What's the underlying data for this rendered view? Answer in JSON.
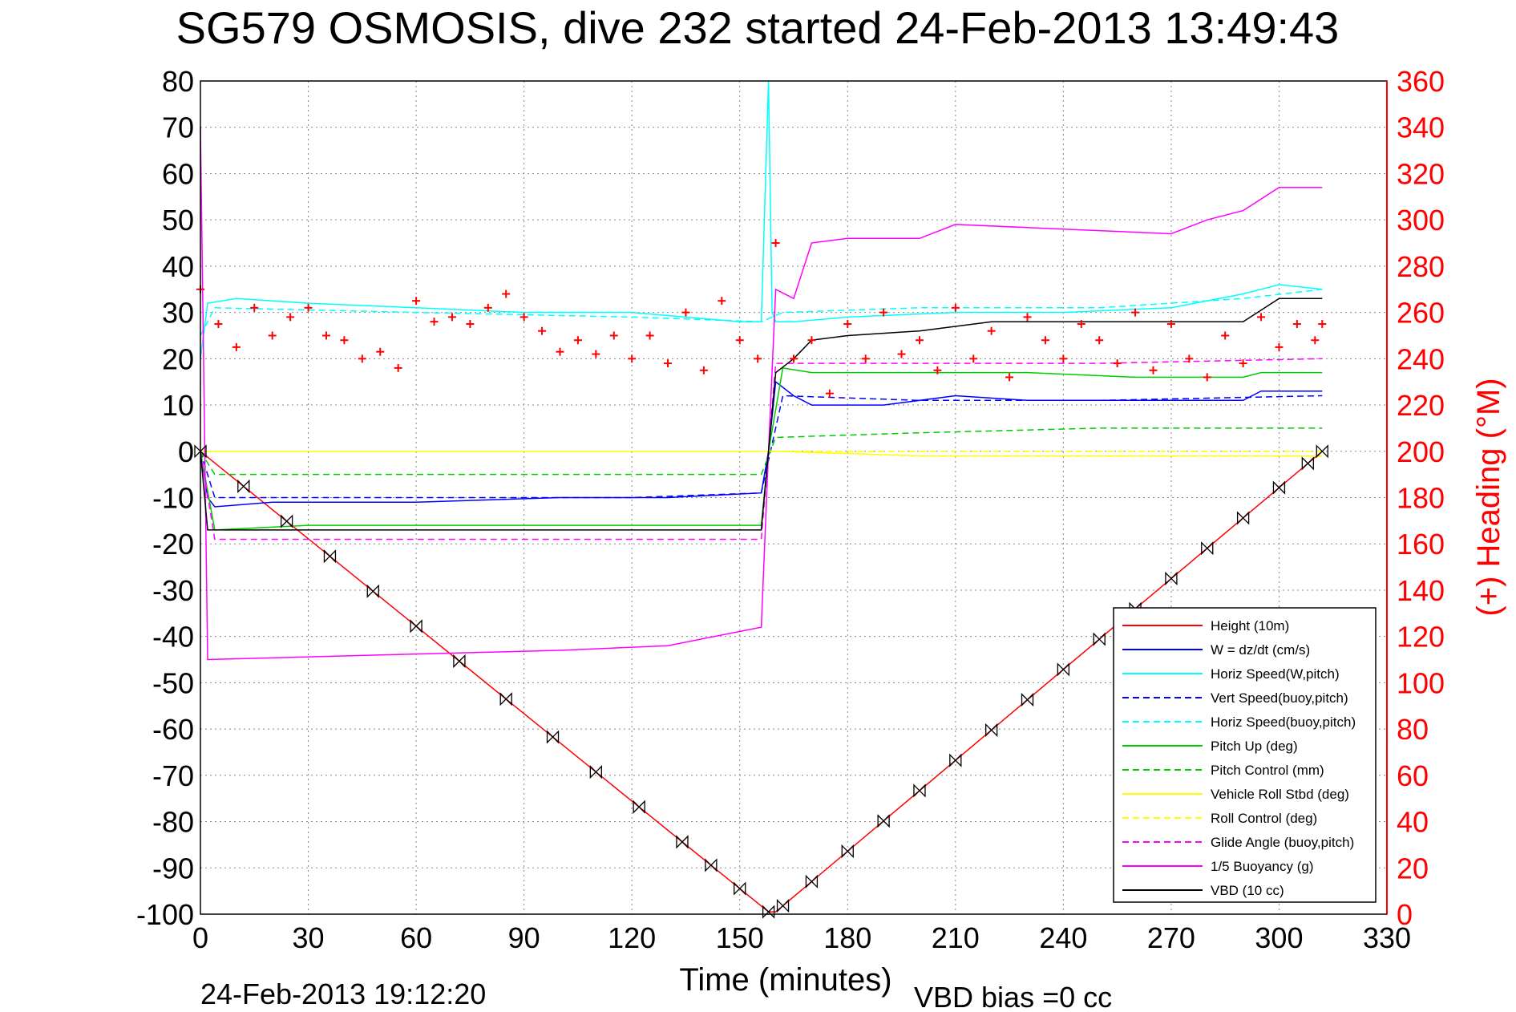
{
  "chart_data": {
    "type": "line",
    "title": "SG579 OSMOSIS, dive 232 started 24-Feb-2013 13:49:43",
    "xlabel": "Time (minutes)",
    "ylabel_right": "(+) Heading (°M)",
    "footer_left": "24-Feb-2013 19:12:20",
    "footer_right": "VBD bias =0 cc",
    "xlim": [
      0,
      330
    ],
    "ylim": [
      -100,
      80
    ],
    "ylim_right": [
      0,
      360
    ],
    "x_ticks": [
      "0",
      "30",
      "60",
      "90",
      "120",
      "150",
      "180",
      "210",
      "240",
      "270",
      "300",
      "330"
    ],
    "y_ticks": [
      "-100",
      "-90",
      "-80",
      "-70",
      "-60",
      "-50",
      "-40",
      "-30",
      "-20",
      "-10",
      "0",
      "10",
      "20",
      "30",
      "40",
      "50",
      "60",
      "70",
      "80"
    ],
    "y_ticks_right": [
      "0",
      "20",
      "40",
      "60",
      "80",
      "100",
      "120",
      "140",
      "160",
      "180",
      "200",
      "220",
      "240",
      "260",
      "280",
      "300",
      "320",
      "340",
      "360"
    ],
    "grid": true,
    "legend_position": "bottom-right",
    "legend": [
      {
        "label": "Height (10m)",
        "color": "#ff0000",
        "style": "solid"
      },
      {
        "label": "W = dz/dt (cm/s)",
        "color": "#0000ff",
        "style": "solid"
      },
      {
        "label": "Horiz Speed(W,pitch)",
        "color": "#00ffff",
        "style": "solid"
      },
      {
        "label": "Vert Speed(buoy,pitch)",
        "color": "#0000ff",
        "style": "dashed"
      },
      {
        "label": "Horiz Speed(buoy,pitch)",
        "color": "#00ffff",
        "style": "dashed"
      },
      {
        "label": "Pitch Up (deg)",
        "color": "#00cc00",
        "style": "solid"
      },
      {
        "label": "Pitch Control (mm)",
        "color": "#00cc00",
        "style": "dashed"
      },
      {
        "label": "Vehicle Roll Stbd (deg)",
        "color": "#ffff00",
        "style": "solid"
      },
      {
        "label": "Roll Control (deg)",
        "color": "#ffff00",
        "style": "dashed"
      },
      {
        "label": "Glide Angle (buoy,pitch)",
        "color": "#ff00ff",
        "style": "dashed"
      },
      {
        "label": "1/5 Buoyancy (g)",
        "color": "#ff00ff",
        "style": "solid"
      },
      {
        "label": "VBD (10 cc)",
        "color": "#000000",
        "style": "solid"
      }
    ],
    "series": [
      {
        "name": "Height (10m)",
        "color": "#ff0000",
        "style": "solid",
        "x": [
          0,
          158,
          160,
          312
        ],
        "y": [
          0,
          -99.5,
          -99.5,
          0
        ]
      },
      {
        "name": "W = dz/dt (cm/s)",
        "color": "#0000ff",
        "style": "solid",
        "x": [
          0,
          2,
          4,
          20,
          60,
          100,
          130,
          156,
          158,
          160,
          165,
          170,
          190,
          210,
          230,
          260,
          290,
          295,
          312
        ],
        "y": [
          0,
          -10,
          -12,
          -11,
          -11,
          -10,
          -10,
          -9,
          0,
          15,
          12,
          10,
          10,
          12,
          11,
          11,
          11,
          13,
          13
        ]
      },
      {
        "name": "Horiz Speed(W,pitch)",
        "color": "#00ffff",
        "style": "solid",
        "x": [
          0,
          2,
          10,
          30,
          60,
          90,
          120,
          150,
          156,
          158,
          159,
          160,
          165,
          180,
          210,
          240,
          270,
          290,
          300,
          312
        ],
        "y": [
          20,
          32,
          33,
          32,
          31,
          30,
          30,
          28,
          28,
          80,
          30,
          28,
          28,
          29,
          30,
          30,
          31,
          34,
          36,
          35
        ]
      },
      {
        "name": "Vert Speed(buoy,pitch)",
        "color": "#0000ff",
        "style": "dashed",
        "x": [
          0,
          4,
          60,
          120,
          156,
          162,
          200,
          250,
          312
        ],
        "y": [
          0,
          -10,
          -10,
          -10,
          -9,
          12,
          11,
          11,
          12
        ]
      },
      {
        "name": "Horiz Speed(buoy,pitch)",
        "color": "#00ffff",
        "style": "dashed",
        "x": [
          0,
          4,
          60,
          120,
          156,
          162,
          200,
          250,
          290,
          312
        ],
        "y": [
          25,
          31,
          30,
          29,
          28,
          30,
          31,
          31,
          33,
          35
        ]
      },
      {
        "name": "Pitch Up (deg)",
        "color": "#00cc00",
        "style": "solid",
        "x": [
          0,
          4,
          30,
          60,
          100,
          130,
          156,
          158,
          162,
          170,
          200,
          230,
          260,
          290,
          295,
          312
        ],
        "y": [
          0,
          -17,
          -16,
          -16,
          -16,
          -16,
          -16,
          0,
          18,
          17,
          17,
          17,
          16,
          16,
          17,
          17
        ]
      },
      {
        "name": "Pitch Control (mm)",
        "color": "#00cc00",
        "style": "dashed",
        "x": [
          0,
          4,
          60,
          120,
          156,
          160,
          200,
          250,
          312
        ],
        "y": [
          0,
          -5,
          -5,
          -5,
          -5,
          3,
          4,
          5,
          5
        ]
      },
      {
        "name": "Vehicle Roll Stbd (deg)",
        "color": "#ffff00",
        "style": "solid",
        "x": [
          0,
          4,
          60,
          120,
          156,
          160,
          200,
          250,
          312
        ],
        "y": [
          0,
          0,
          0,
          0,
          0,
          0,
          -1,
          -1,
          -1
        ]
      },
      {
        "name": "Roll Control (deg)",
        "color": "#ffff00",
        "style": "dashed",
        "x": [
          0,
          4,
          156,
          160,
          312
        ],
        "y": [
          0,
          0,
          0,
          0,
          0
        ]
      },
      {
        "name": "Glide Angle (buoy,pitch)",
        "color": "#ff00ff",
        "style": "dashed",
        "x": [
          0,
          4,
          60,
          120,
          156,
          160,
          200,
          250,
          312
        ],
        "y": [
          0,
          -19,
          -19,
          -19,
          -19,
          19,
          19,
          19,
          20
        ]
      },
      {
        "name": "1/5 Buoyancy (g)",
        "color": "#ff00ff",
        "style": "solid",
        "x": [
          0,
          2,
          50,
          100,
          130,
          156,
          158,
          160,
          165,
          170,
          180,
          200,
          210,
          240,
          270,
          280,
          290,
          300,
          312
        ],
        "y": [
          70,
          -45,
          -44,
          -43,
          -42,
          -38,
          0,
          35,
          33,
          45,
          46,
          46,
          49,
          48,
          47,
          50,
          52,
          57,
          57
        ]
      },
      {
        "name": "VBD (10 cc)",
        "color": "#000000",
        "style": "solid",
        "x": [
          0,
          2,
          156,
          158,
          160,
          165,
          170,
          180,
          200,
          220,
          260,
          290,
          300,
          312
        ],
        "y": [
          0,
          -17,
          -17,
          0,
          17,
          20,
          24,
          25,
          26,
          28,
          28,
          28,
          33,
          33
        ]
      },
      {
        "name": "Heading",
        "axis": "right",
        "color": "#ff0000",
        "style": "markers",
        "x": [
          0,
          5,
          10,
          15,
          20,
          25,
          30,
          35,
          40,
          45,
          50,
          55,
          60,
          65,
          70,
          75,
          80,
          85,
          90,
          95,
          100,
          105,
          110,
          115,
          120,
          125,
          130,
          135,
          140,
          145,
          150,
          155,
          160,
          165,
          170,
          175,
          180,
          185,
          190,
          195,
          200,
          205,
          210,
          215,
          220,
          225,
          230,
          235,
          240,
          245,
          250,
          255,
          260,
          265,
          270,
          275,
          280,
          285,
          290,
          295,
          300,
          305,
          310,
          312
        ],
        "y": [
          270,
          255,
          245,
          262,
          250,
          258,
          262,
          250,
          248,
          240,
          243,
          236,
          265,
          256,
          258,
          255,
          262,
          268,
          258,
          252,
          243,
          248,
          242,
          250,
          240,
          250,
          238,
          260,
          235,
          265,
          248,
          240,
          290,
          240,
          248,
          225,
          255,
          240,
          260,
          242,
          248,
          235,
          262,
          240,
          252,
          232,
          258,
          248,
          240,
          255,
          248,
          238,
          260,
          235,
          255,
          240,
          232,
          250,
          238,
          258,
          245,
          255,
          248,
          255
        ]
      }
    ]
  }
}
